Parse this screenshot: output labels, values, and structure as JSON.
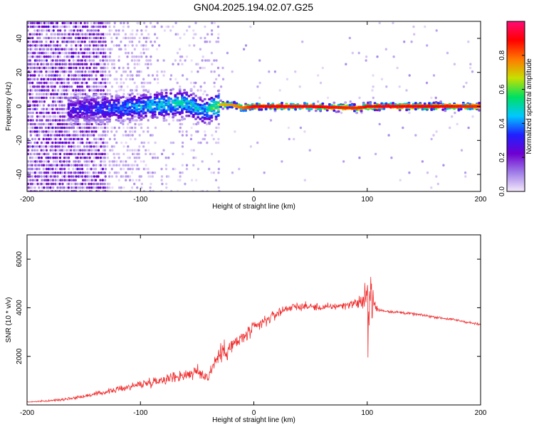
{
  "title": "GN04.2025.194.02.07.G25",
  "chart_data": [
    {
      "type": "heatmap",
      "xlabel": "Height of straight line (km)",
      "ylabel": "Frequency (Hz)",
      "xlim": [
        -200,
        200
      ],
      "ylim": [
        -50,
        50
      ],
      "xticks": [
        -200,
        -100,
        0,
        100,
        200
      ],
      "yticks": [
        -40,
        -20,
        0,
        20,
        40
      ],
      "xtick_labels": [
        "-200",
        "-100",
        "0",
        "100",
        "200"
      ],
      "ytick_labels": [
        "-40",
        "-20",
        "0",
        "20",
        "40"
      ],
      "colorbar": {
        "label": "Normalized spectral amplitude",
        "range": [
          0,
          1
        ],
        "ticks": [
          0,
          0.2,
          0.4,
          0.6,
          0.8
        ],
        "tick_labels": [
          "0.0",
          "0.2",
          "0.4",
          "0.6",
          "0.8"
        ],
        "colormap": "rainbow",
        "colors": [
          "#f4e9fb",
          "#a07ee8",
          "#6e00d0",
          "#2020ff",
          "#00c8ff",
          "#00e060",
          "#c8e000",
          "#ff7800",
          "#ff0000",
          "#ff0a78"
        ]
      },
      "grid": false,
      "ridge": {
        "x": [
          -160,
          -140,
          -120,
          -100,
          -80,
          -60,
          -45,
          -30,
          -20,
          -10,
          0,
          20,
          50,
          90,
          100,
          150,
          200
        ],
        "frequency": [
          -2,
          -1,
          -1,
          0,
          1,
          2,
          -3,
          1,
          1,
          -1,
          0,
          0,
          0,
          -1,
          0,
          0,
          0
        ],
        "amplitude": [
          0.3,
          0.35,
          0.4,
          0.45,
          0.5,
          0.5,
          0.45,
          0.7,
          0.75,
          0.8,
          0.9,
          0.9,
          0.9,
          0.85,
          0.9,
          0.9,
          0.85
        ]
      }
    },
    {
      "type": "line",
      "xlabel": "Height of straight line (km)",
      "ylabel": "SNR (10 * v/v)",
      "xlim": [
        -200,
        200
      ],
      "ylim": [
        0,
        7000
      ],
      "xticks": [
        -200,
        -100,
        0,
        100,
        200
      ],
      "yticks": [
        2000,
        4000,
        6000
      ],
      "xtick_labels": [
        "-200",
        "-100",
        "0",
        "100",
        "200"
      ],
      "ytick_labels": [
        "2000",
        "4000",
        "6000"
      ],
      "grid": false,
      "series": [
        {
          "color": "#f03030",
          "x": [
            -200,
            -180,
            -160,
            -140,
            -120,
            -100,
            -80,
            -60,
            -50,
            -40,
            -36,
            -30,
            -20,
            -10,
            0,
            10,
            20,
            30,
            40,
            50,
            60,
            70,
            80,
            90,
            96,
            100,
            103,
            106,
            110,
            120,
            140,
            160,
            180,
            200
          ],
          "y": [
            120,
            170,
            280,
            440,
            640,
            850,
            1050,
            1250,
            1350,
            1150,
            1650,
            2100,
            2400,
            2750,
            3150,
            3450,
            3750,
            4000,
            4050,
            4050,
            4000,
            4050,
            4100,
            4200,
            4250,
            4350,
            4600,
            4100,
            3900,
            3850,
            3750,
            3620,
            3480,
            3300
          ],
          "spread": [
            40,
            60,
            110,
            160,
            220,
            300,
            380,
            480,
            520,
            420,
            700,
            800,
            700,
            600,
            520,
            450,
            380,
            330,
            300,
            280,
            260,
            260,
            280,
            320,
            900,
            1400,
            2000,
            700,
            150,
            110,
            100,
            95,
            90,
            85
          ]
        }
      ]
    }
  ]
}
